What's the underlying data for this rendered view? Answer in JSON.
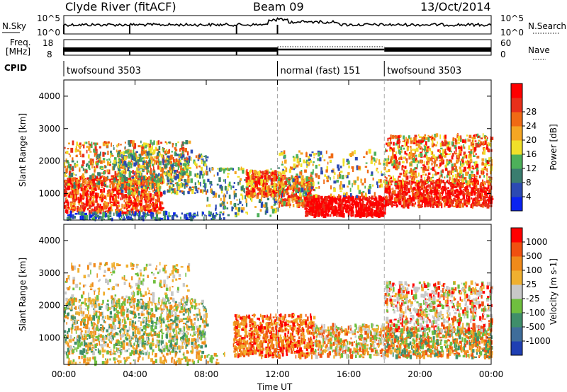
{
  "header": {
    "station": "Clyde River (fitACF)",
    "beam": "Beam 09",
    "date": "13/Oct/2014"
  },
  "strip_labels": {
    "nsky": "N.Sky",
    "nsearch": "N.Search",
    "freq_line1": "Freq.",
    "freq_line2": "[MHz]",
    "nave": "Nave",
    "cpid": "CPID"
  },
  "strip_ticks": {
    "noise_left_top": "10^5",
    "noise_left_bottom": "10^0",
    "noise_right_top": "10^5",
    "noise_right_bottom": "10^0",
    "freq_left_top": "18",
    "freq_left_bottom": "8",
    "nave_right_top": "60",
    "nave_right_bottom": "0"
  },
  "cpid_segments": [
    {
      "label": "twofsound 3503",
      "start_hour": 0,
      "end_hour": 12
    },
    {
      "label": "normal (fast) 151",
      "start_hour": 12,
      "end_hour": 18
    },
    {
      "label": "twofsound 3503",
      "start_hour": 18,
      "end_hour": 24
    }
  ],
  "chart_data": [
    {
      "type": "heatmap",
      "name": "power-panel",
      "ylabel": "Slant Range [km]",
      "xlabel": "",
      "xlim_hours": [
        0,
        24
      ],
      "ylim_km": [
        180,
        4500
      ],
      "x_ticks": [
        "00:00",
        "04:00",
        "08:00",
        "12:00",
        "16:00",
        "20:00",
        "00:00"
      ],
      "y_ticks": [
        1000,
        2000,
        3000,
        4000
      ],
      "colorbar": {
        "label": "Power [dB]",
        "ticks": [
          "4",
          "8",
          "12",
          "16",
          "20",
          "24",
          "28"
        ],
        "colors": [
          "#0a23f0",
          "#2c4ab3",
          "#3a7d6f",
          "#4db05a",
          "#f0e02a",
          "#f5a623",
          "#f06a14",
          "#e8301a",
          "#ff0000"
        ]
      },
      "dividers_hours": [
        12,
        18
      ]
    },
    {
      "type": "heatmap",
      "name": "velocity-panel",
      "ylabel": "Slant Range [km]",
      "xlabel": "Time UT",
      "xlim_hours": [
        0,
        24
      ],
      "ylim_km": [
        180,
        4500
      ],
      "x_ticks": [
        "00:00",
        "04:00",
        "08:00",
        "12:00",
        "16:00",
        "20:00",
        "00:00"
      ],
      "y_ticks": [
        1000,
        2000,
        3000,
        4000
      ],
      "colorbar": {
        "label": "Velocity [m s-1]",
        "ticks": [
          "1000",
          "500",
          "100",
          "25",
          "-25",
          "-100",
          "-500",
          "-1000"
        ],
        "colors": [
          "#1f3fb3",
          "#3f6d9a",
          "#3f8e6a",
          "#6fbf3f",
          "#c8c8c8",
          "#f0b030",
          "#f08a1a",
          "#f05010",
          "#ff0000"
        ]
      },
      "dividers_hours": [
        12,
        18
      ]
    }
  ]
}
